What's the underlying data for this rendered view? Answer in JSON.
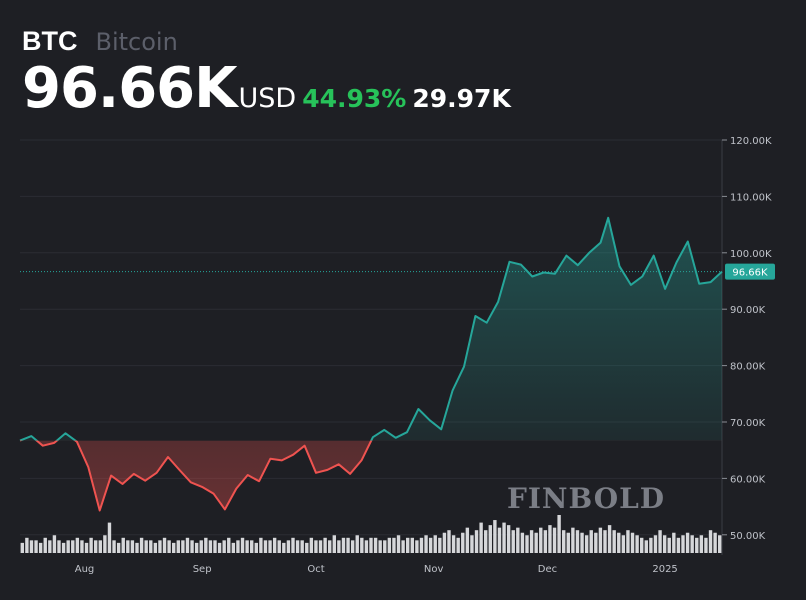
{
  "header": {
    "symbol": "BTC",
    "name": "Bitcoin",
    "price": "96.66K",
    "currency": "USD",
    "change_pct": "44.93%",
    "change_abs": "29.97K"
  },
  "colors": {
    "background": "#1e1f24",
    "up": "#26a69a",
    "down": "#ef5350",
    "pct_text": "#27c25a",
    "last_label_bg": "#26a69a"
  },
  "watermark": "FINBOLD",
  "chart_data": {
    "type": "line",
    "title": "",
    "xlabel": "",
    "ylabel": "",
    "ylim": [
      45000,
      120000
    ],
    "yticks": [
      {
        "value": 120000,
        "label": "120.00K"
      },
      {
        "value": 110000,
        "label": "110.00K"
      },
      {
        "value": 100000,
        "label": "100.00K"
      },
      {
        "value": 90000,
        "label": "90.00K"
      },
      {
        "value": 80000,
        "label": "80.00K"
      },
      {
        "value": 70000,
        "label": "70.00K"
      },
      {
        "value": 60000,
        "label": "60.00K"
      },
      {
        "value": 50000,
        "label": "50.00K"
      }
    ],
    "xlim": [
      "2024-07-15",
      "2025-01-16"
    ],
    "xticks": [
      {
        "date": "2024-08-01",
        "label": "Aug"
      },
      {
        "date": "2024-09-01",
        "label": "Sep"
      },
      {
        "date": "2024-10-01",
        "label": "Oct"
      },
      {
        "date": "2024-11-01",
        "label": "Nov"
      },
      {
        "date": "2024-12-01",
        "label": "Dec"
      },
      {
        "date": "2025-01-01",
        "label": "2025"
      }
    ],
    "last_value": 96660,
    "last_label": "96.66K",
    "baseline": 66690,
    "series": [
      {
        "x": [
          "2024-07-15",
          "2024-07-18",
          "2024-07-21",
          "2024-07-24",
          "2024-07-27",
          "2024-07-30",
          "2024-08-02",
          "2024-08-05",
          "2024-08-08",
          "2024-08-11",
          "2024-08-14",
          "2024-08-17",
          "2024-08-20",
          "2024-08-23",
          "2024-08-26",
          "2024-08-29",
          "2024-09-01",
          "2024-09-04",
          "2024-09-07",
          "2024-09-10",
          "2024-09-13",
          "2024-09-16",
          "2024-09-19",
          "2024-09-22",
          "2024-09-25",
          "2024-09-28",
          "2024-10-01",
          "2024-10-04",
          "2024-10-07",
          "2024-10-10",
          "2024-10-13",
          "2024-10-16",
          "2024-10-19",
          "2024-10-22",
          "2024-10-25",
          "2024-10-28",
          "2024-10-31",
          "2024-11-03",
          "2024-11-06",
          "2024-11-09",
          "2024-11-12",
          "2024-11-15",
          "2024-11-18",
          "2024-11-21",
          "2024-11-24",
          "2024-11-27",
          "2024-11-30",
          "2024-12-03",
          "2024-12-06",
          "2024-12-09",
          "2024-12-12",
          "2024-12-15",
          "2024-12-17",
          "2024-12-20",
          "2024-12-23",
          "2024-12-26",
          "2024-12-29",
          "2025-01-01",
          "2025-01-04",
          "2025-01-07",
          "2025-01-10",
          "2025-01-13",
          "2025-01-16"
        ],
        "values": [
          66700,
          67500,
          65800,
          66300,
          68000,
          66500,
          62000,
          54300,
          60500,
          59000,
          60800,
          59600,
          61000,
          63800,
          61500,
          59300,
          58500,
          57300,
          54500,
          58200,
          60600,
          59500,
          63500,
          63200,
          64200,
          65800,
          61000,
          61500,
          62500,
          60800,
          63200,
          67300,
          68600,
          67200,
          68200,
          72300,
          70300,
          68700,
          75600,
          79800,
          88800,
          87600,
          91300,
          98400,
          97900,
          95800,
          96500,
          96300,
          99500,
          97800,
          100000,
          101800,
          106200,
          97600,
          94300,
          95800,
          99500,
          93600,
          98300,
          102000,
          94500,
          94800,
          96660
        ]
      }
    ],
    "volume": [
      4,
      6,
      5,
      5,
      4,
      6,
      5,
      7,
      5,
      4,
      5,
      5,
      6,
      5,
      4,
      6,
      5,
      5,
      7,
      12,
      5,
      4,
      6,
      5,
      5,
      4,
      6,
      5,
      5,
      4,
      5,
      6,
      5,
      4,
      5,
      5,
      6,
      5,
      4,
      5,
      6,
      5,
      5,
      4,
      5,
      6,
      4,
      5,
      6,
      5,
      5,
      4,
      6,
      5,
      5,
      6,
      5,
      4,
      5,
      6,
      5,
      5,
      4,
      6,
      5,
      5,
      6,
      5,
      7,
      5,
      6,
      6,
      5,
      7,
      6,
      5,
      6,
      6,
      5,
      5,
      6,
      6,
      7,
      5,
      6,
      6,
      5,
      6,
      7,
      6,
      7,
      6,
      8,
      9,
      7,
      6,
      8,
      10,
      7,
      9,
      12,
      9,
      11,
      13,
      10,
      12,
      11,
      9,
      10,
      8,
      7,
      9,
      8,
      10,
      9,
      11,
      10,
      15,
      9,
      8,
      10,
      9,
      8,
      7,
      9,
      8,
      10,
      9,
      11,
      9,
      8,
      7,
      9,
      8,
      7,
      6,
      5,
      6,
      7,
      9,
      7,
      6,
      8,
      6,
      7,
      8,
      7,
      6,
      7,
      6,
      9,
      8,
      7
    ]
  }
}
